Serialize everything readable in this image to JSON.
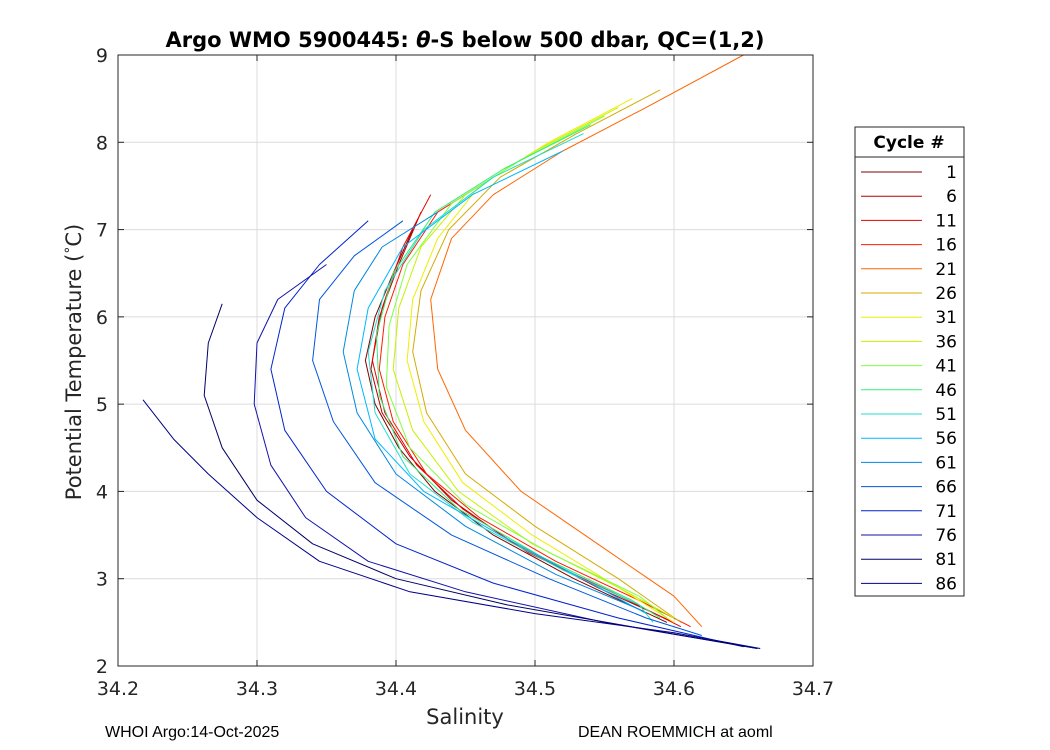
{
  "chart_data": {
    "type": "line",
    "title": "Argo WMO 5900445: θ-S below 500 dbar,  QC=(1,2)",
    "title_parts": {
      "prefix": "Argo WMO 5900445: ",
      "theta": "θ",
      "suffix": "-S below 500 dbar,  QC=(1,2)"
    },
    "xlabel": "Salinity",
    "ylabel": "Potential Temperature (°C)",
    "ylabel_parts": {
      "prefix": "Potential Temperature (",
      "degree": "°",
      "suffix": "C)"
    },
    "xlim": [
      34.2,
      34.7
    ],
    "ylim": [
      2,
      9
    ],
    "xticks": [
      "34.2",
      "34.3",
      "34.4",
      "34.5",
      "34.6",
      "34.7"
    ],
    "yticks": [
      "2",
      "3",
      "4",
      "5",
      "6",
      "7",
      "8",
      "9"
    ],
    "grid": true,
    "legend": {
      "title": "Cycle #",
      "placement": "right-outside",
      "entries": [
        {
          "label": "1",
          "color": "#800000"
        },
        {
          "label": "6",
          "color": "#b30000"
        },
        {
          "label": "11",
          "color": "#e60000"
        },
        {
          "label": "16",
          "color": "#ff1a00"
        },
        {
          "label": "21",
          "color": "#ff6600"
        },
        {
          "label": "26",
          "color": "#d4aa00"
        },
        {
          "label": "31",
          "color": "#eeee00"
        },
        {
          "label": "36",
          "color": "#c8f000"
        },
        {
          "label": "41",
          "color": "#80ff40"
        },
        {
          "label": "46",
          "color": "#33ee77"
        },
        {
          "label": "51",
          "color": "#22ddcc"
        },
        {
          "label": "56",
          "color": "#00b8ff"
        },
        {
          "label": "61",
          "color": "#0088dd"
        },
        {
          "label": "66",
          "color": "#0055dd"
        },
        {
          "label": "71",
          "color": "#0022cc"
        },
        {
          "label": "76",
          "color": "#1111aa"
        },
        {
          "label": "81",
          "color": "#000066"
        },
        {
          "label": "86",
          "color": "#000088"
        }
      ]
    },
    "series": [
      {
        "name": "1",
        "color": "#800000",
        "points": [
          [
            34.412,
            7.0
          ],
          [
            34.398,
            6.5
          ],
          [
            34.385,
            6.0
          ],
          [
            34.378,
            5.5
          ],
          [
            34.385,
            5.0
          ],
          [
            34.402,
            4.5
          ],
          [
            34.428,
            4.0
          ],
          [
            34.47,
            3.5
          ],
          [
            34.528,
            3.0
          ],
          [
            34.595,
            2.5
          ]
        ]
      },
      {
        "name": "6",
        "color": "#b30000",
        "points": [
          [
            34.418,
            7.2
          ],
          [
            34.402,
            6.6
          ],
          [
            34.388,
            6.0
          ],
          [
            34.382,
            5.4
          ],
          [
            34.39,
            4.9
          ],
          [
            34.41,
            4.4
          ],
          [
            34.44,
            3.9
          ],
          [
            34.485,
            3.4
          ],
          [
            34.545,
            2.9
          ],
          [
            34.6,
            2.5
          ]
        ]
      },
      {
        "name": "11",
        "color": "#e60000",
        "points": [
          [
            34.425,
            7.4
          ],
          [
            34.405,
            6.8
          ],
          [
            34.39,
            6.1
          ],
          [
            34.383,
            5.5
          ],
          [
            34.392,
            4.9
          ],
          [
            34.415,
            4.3
          ],
          [
            34.448,
            3.8
          ],
          [
            34.495,
            3.3
          ],
          [
            34.555,
            2.85
          ],
          [
            34.605,
            2.45
          ]
        ]
      },
      {
        "name": "16",
        "color": "#ff1a00",
        "points": [
          [
            34.47,
            7.6
          ],
          [
            34.43,
            7.2
          ],
          [
            34.405,
            6.6
          ],
          [
            34.392,
            6.0
          ],
          [
            34.388,
            5.4
          ],
          [
            34.398,
            4.8
          ],
          [
            34.422,
            4.2
          ],
          [
            34.46,
            3.7
          ],
          [
            34.515,
            3.2
          ],
          [
            34.575,
            2.75
          ],
          [
            34.612,
            2.45
          ]
        ]
      },
      {
        "name": "21",
        "color": "#ff6600",
        "points": [
          [
            34.65,
            9.0
          ],
          [
            34.58,
            8.4
          ],
          [
            34.52,
            7.9
          ],
          [
            34.47,
            7.4
          ],
          [
            34.44,
            6.9
          ],
          [
            34.425,
            6.2
          ],
          [
            34.43,
            5.4
          ],
          [
            34.45,
            4.7
          ],
          [
            34.49,
            4.0
          ],
          [
            34.545,
            3.4
          ],
          [
            34.6,
            2.8
          ],
          [
            34.62,
            2.45
          ]
        ]
      },
      {
        "name": "26",
        "color": "#d4aa00",
        "points": [
          [
            34.59,
            8.6
          ],
          [
            34.53,
            8.1
          ],
          [
            34.475,
            7.6
          ],
          [
            34.438,
            7.0
          ],
          [
            34.418,
            6.3
          ],
          [
            34.412,
            5.6
          ],
          [
            34.422,
            4.9
          ],
          [
            34.45,
            4.2
          ],
          [
            34.5,
            3.6
          ],
          [
            34.56,
            3.0
          ],
          [
            34.605,
            2.5
          ]
        ]
      },
      {
        "name": "31",
        "color": "#eeee00",
        "points": [
          [
            34.57,
            8.5
          ],
          [
            34.51,
            8.0
          ],
          [
            34.46,
            7.5
          ],
          [
            34.43,
            6.9
          ],
          [
            34.412,
            6.2
          ],
          [
            34.408,
            5.5
          ],
          [
            34.42,
            4.8
          ],
          [
            34.448,
            4.1
          ],
          [
            34.498,
            3.5
          ],
          [
            34.555,
            2.95
          ],
          [
            34.6,
            2.5
          ]
        ]
      },
      {
        "name": "36",
        "color": "#c8f000",
        "points": [
          [
            34.56,
            8.4
          ],
          [
            34.5,
            7.9
          ],
          [
            34.45,
            7.4
          ],
          [
            34.418,
            6.8
          ],
          [
            34.402,
            6.1
          ],
          [
            34.398,
            5.4
          ],
          [
            34.412,
            4.7
          ],
          [
            34.445,
            4.0
          ],
          [
            34.498,
            3.4
          ],
          [
            34.56,
            2.9
          ],
          [
            34.6,
            2.55
          ]
        ]
      },
      {
        "name": "41",
        "color": "#80ff40",
        "points": [
          [
            34.55,
            8.3
          ],
          [
            34.49,
            7.8
          ],
          [
            34.44,
            7.3
          ],
          [
            34.408,
            6.6
          ],
          [
            34.395,
            5.9
          ],
          [
            34.393,
            5.2
          ],
          [
            34.41,
            4.5
          ],
          [
            34.45,
            3.85
          ],
          [
            34.51,
            3.3
          ],
          [
            34.575,
            2.8
          ],
          [
            34.595,
            2.55
          ]
        ]
      },
      {
        "name": "46",
        "color": "#33ee77",
        "points": [
          [
            34.54,
            8.2
          ],
          [
            34.478,
            7.7
          ],
          [
            34.428,
            7.2
          ],
          [
            34.398,
            6.5
          ],
          [
            34.386,
            5.8
          ],
          [
            34.388,
            5.1
          ],
          [
            34.405,
            4.4
          ],
          [
            34.445,
            3.8
          ],
          [
            34.505,
            3.25
          ],
          [
            34.57,
            2.75
          ],
          [
            34.59,
            2.55
          ]
        ]
      },
      {
        "name": "51",
        "color": "#22ddcc",
        "points": [
          [
            34.535,
            8.1
          ],
          [
            34.47,
            7.6
          ],
          [
            34.42,
            7.0
          ],
          [
            34.392,
            6.3
          ],
          [
            34.38,
            5.6
          ],
          [
            34.385,
            4.9
          ],
          [
            34.41,
            4.2
          ],
          [
            34.455,
            3.65
          ],
          [
            34.52,
            3.1
          ],
          [
            34.575,
            2.7
          ],
          [
            34.585,
            2.5
          ]
        ]
      },
      {
        "name": "56",
        "color": "#00b8ff",
        "points": [
          [
            34.52,
            7.9
          ],
          [
            34.455,
            7.4
          ],
          [
            34.405,
            6.8
          ],
          [
            34.38,
            6.1
          ],
          [
            34.372,
            5.4
          ],
          [
            34.385,
            4.6
          ],
          [
            34.42,
            4.0
          ],
          [
            34.475,
            3.5
          ],
          [
            34.54,
            2.95
          ],
          [
            34.58,
            2.6
          ]
        ]
      },
      {
        "name": "61",
        "color": "#0088dd",
        "points": [
          [
            34.43,
            7.2
          ],
          [
            34.39,
            6.8
          ],
          [
            34.37,
            6.3
          ],
          [
            34.362,
            5.6
          ],
          [
            34.372,
            4.9
          ],
          [
            34.4,
            4.2
          ],
          [
            34.45,
            3.6
          ],
          [
            34.515,
            3.05
          ],
          [
            34.575,
            2.65
          ]
        ]
      },
      {
        "name": "66",
        "color": "#0055dd",
        "points": [
          [
            34.405,
            7.1
          ],
          [
            34.37,
            6.7
          ],
          [
            34.345,
            6.2
          ],
          [
            34.34,
            5.5
          ],
          [
            34.355,
            4.8
          ],
          [
            34.385,
            4.1
          ],
          [
            34.44,
            3.5
          ],
          [
            34.51,
            3.0
          ],
          [
            34.58,
            2.55
          ],
          [
            34.62,
            2.35
          ]
        ]
      },
      {
        "name": "71",
        "color": "#0022cc",
        "points": [
          [
            34.38,
            7.1
          ],
          [
            34.345,
            6.6
          ],
          [
            34.32,
            6.1
          ],
          [
            34.31,
            5.4
          ],
          [
            34.32,
            4.7
          ],
          [
            34.35,
            4.0
          ],
          [
            34.4,
            3.4
          ],
          [
            34.47,
            2.95
          ],
          [
            34.56,
            2.55
          ],
          [
            34.65,
            2.22
          ]
        ]
      },
      {
        "name": "76",
        "color": "#1111aa",
        "points": [
          [
            34.35,
            6.6
          ],
          [
            34.315,
            6.2
          ],
          [
            34.3,
            5.7
          ],
          [
            34.298,
            5.0
          ],
          [
            34.31,
            4.3
          ],
          [
            34.335,
            3.7
          ],
          [
            34.38,
            3.2
          ],
          [
            34.45,
            2.85
          ],
          [
            34.55,
            2.5
          ],
          [
            34.66,
            2.2
          ]
        ]
      },
      {
        "name": "81",
        "color": "#000066",
        "points": [
          [
            34.275,
            6.15
          ],
          [
            34.265,
            5.7
          ],
          [
            34.262,
            5.1
          ],
          [
            34.275,
            4.5
          ],
          [
            34.3,
            3.9
          ],
          [
            34.34,
            3.4
          ],
          [
            34.4,
            3.0
          ],
          [
            34.48,
            2.7
          ],
          [
            34.58,
            2.42
          ],
          [
            34.66,
            2.2
          ]
        ]
      },
      {
        "name": "86",
        "color": "#000088",
        "points": [
          [
            34.218,
            5.05
          ],
          [
            34.24,
            4.6
          ],
          [
            34.265,
            4.2
          ],
          [
            34.3,
            3.7
          ],
          [
            34.345,
            3.2
          ],
          [
            34.41,
            2.85
          ],
          [
            34.5,
            2.6
          ],
          [
            34.6,
            2.38
          ],
          [
            34.662,
            2.2
          ]
        ]
      }
    ]
  },
  "footer": {
    "left": "WHOI Argo:14-Oct-2025",
    "right": "DEAN ROEMMICH at aoml"
  }
}
